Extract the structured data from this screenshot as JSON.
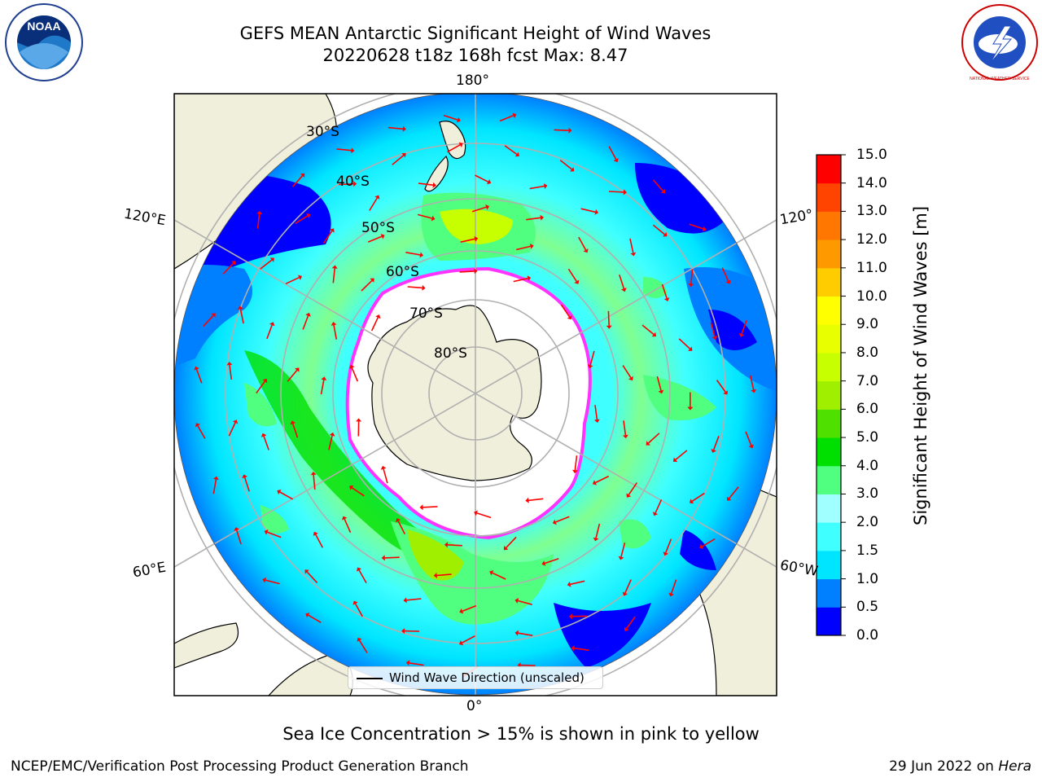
{
  "header": {
    "title_line1": "GEFS MEAN Antarctic Significant Height of Wind Waves",
    "title_line2": "20220628 t18z 168h fcst   Max: 8.47"
  },
  "map": {
    "projection": "south-polar-stereographic",
    "longitude_labels": {
      "top": "180°",
      "bottom": "0°",
      "upper_left": "120°E",
      "upper_right": "120°",
      "lower_left": "60°E",
      "lower_right": "60°W"
    },
    "latitude_labels": [
      "30°S",
      "40°S",
      "50°S",
      "60°S",
      "70°S",
      "80°S"
    ],
    "legend_label": "Wind Wave Direction (unscaled)",
    "colors": {
      "land": "#efefdb",
      "grid": "#b0b0b0",
      "arrow": "#ff0000",
      "ice_edge": "#ff33ff"
    }
  },
  "colorbar": {
    "label": "Significant Height of Wind Waves [m]",
    "ticks": [
      "0.0",
      "0.5",
      "1.0",
      "1.5",
      "2.0",
      "3.0",
      "4.0",
      "5.0",
      "6.0",
      "7.0",
      "8.0",
      "9.0",
      "10.0",
      "11.0",
      "12.0",
      "13.0",
      "14.0",
      "15.0"
    ],
    "colors": [
      "#0000ff",
      "#0080ff",
      "#00e5ff",
      "#40ffff",
      "#a0ffff",
      "#50ff80",
      "#00e000",
      "#50e000",
      "#a0ee00",
      "#c8ff00",
      "#e8ff00",
      "#ffff00",
      "#ffcc00",
      "#ff9900",
      "#ff7700",
      "#ff4400",
      "#ff0000"
    ]
  },
  "subtitle": "Sea Ice Concentration > 15% is shown in pink to yellow",
  "footer": {
    "left": "NCEP/EMC/Verification Post Processing Product Generation Branch",
    "date": "29 Jun 2022 on",
    "host": "Hera"
  },
  "logos": {
    "noaa": "NOAA",
    "nws": "NATIONAL WEATHER SERVICE"
  }
}
